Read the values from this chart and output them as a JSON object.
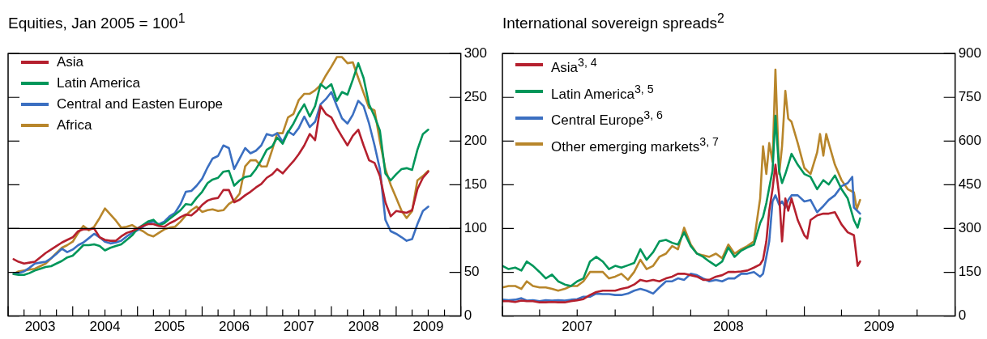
{
  "chart_data": [
    {
      "type": "line",
      "title": "Equities, Jan 2005 = 100$^{1}$",
      "legend": "top left",
      "x": [
        "2003-02",
        "2003-03",
        "2003-04",
        "2003-05",
        "2003-06",
        "2003-07",
        "2003-08",
        "2003-09",
        "2003-10",
        "2003-11",
        "2003-12",
        "2004-01",
        "2004-02",
        "2004-03",
        "2004-04",
        "2004-05",
        "2004-06",
        "2004-07",
        "2004-08",
        "2004-09",
        "2004-10",
        "2004-11",
        "2004-12",
        "2005-01",
        "2005-02",
        "2005-03",
        "2005-04",
        "2005-05",
        "2005-06",
        "2005-07",
        "2005-08",
        "2005-09",
        "2005-10",
        "2005-11",
        "2005-12",
        "2006-01",
        "2006-02",
        "2006-03",
        "2006-04",
        "2006-05",
        "2006-06",
        "2006-07",
        "2006-08",
        "2006-09",
        "2006-10",
        "2006-11",
        "2006-12",
        "2007-01",
        "2007-02",
        "2007-03",
        "2007-04",
        "2007-05",
        "2007-06",
        "2007-07",
        "2007-08",
        "2007-09",
        "2007-10",
        "2007-11",
        "2007-12",
        "2008-01",
        "2008-02",
        "2008-03",
        "2008-04",
        "2008-05",
        "2008-06",
        "2008-07",
        "2008-08",
        "2008-09",
        "2008-10",
        "2008-11",
        "2008-12",
        "2009-01",
        "2009-02",
        "2009-03",
        "2009-04",
        "2009-05",
        "2009-06",
        "2009-07"
      ],
      "series": [
        {
          "name": "Asia",
          "color": "#b5202e",
          "values": [
            65,
            62,
            60,
            61,
            62,
            67,
            72,
            76,
            80,
            84,
            87,
            90,
            97,
            99,
            99,
            100,
            90,
            87,
            86,
            86,
            91,
            95,
            97,
            100,
            103,
            105,
            105,
            103,
            102,
            106,
            109,
            113,
            116,
            115,
            120,
            127,
            132,
            134,
            135,
            144,
            144,
            130,
            133,
            138,
            142,
            147,
            151,
            158,
            162,
            168,
            163,
            170,
            177,
            185,
            195,
            208,
            201,
            240,
            231,
            227,
            215,
            205,
            195,
            206,
            213,
            195,
            178,
            175,
            160,
            130,
            114,
            120,
            119,
            118,
            121,
            145,
            158,
            165
          ]
        },
        {
          "name": "Latin America",
          "color": "#00965a",
          "values": [
            48,
            47,
            47,
            49,
            52,
            54,
            56,
            57,
            60,
            63,
            67,
            69,
            75,
            81,
            81,
            82,
            80,
            75,
            78,
            80,
            82,
            87,
            92,
            100,
            104,
            108,
            110,
            104,
            106,
            111,
            116,
            121,
            128,
            127,
            135,
            142,
            152,
            156,
            158,
            165,
            166,
            149,
            155,
            159,
            160,
            168,
            178,
            190,
            194,
            204,
            197,
            210,
            220,
            232,
            242,
            228,
            240,
            265,
            260,
            265,
            246,
            256,
            253,
            270,
            289,
            272,
            242,
            228,
            212,
            163,
            155,
            162,
            168,
            169,
            167,
            190,
            208,
            213
          ]
        },
        {
          "name": "Central and Easten Europe",
          "color": "#3b6fc1",
          "values": [
            48,
            49,
            51,
            55,
            60,
            61,
            62,
            66,
            71,
            77,
            73,
            76,
            81,
            84,
            89,
            94,
            90,
            85,
            83,
            84,
            86,
            91,
            95,
            98,
            102,
            106,
            108,
            105,
            108,
            114,
            118,
            128,
            142,
            143,
            149,
            157,
            170,
            180,
            183,
            195,
            192,
            168,
            180,
            192,
            186,
            189,
            195,
            208,
            206,
            209,
            199,
            211,
            207,
            215,
            228,
            216,
            222,
            242,
            248,
            256,
            240,
            226,
            220,
            230,
            246,
            240,
            220,
            195,
            168,
            110,
            97,
            94,
            90,
            86,
            88,
            105,
            120,
            125
          ]
        },
        {
          "name": "Africa",
          "color": "#b8862b",
          "values": [
            48,
            51,
            52,
            53,
            54,
            57,
            60,
            66,
            72,
            78,
            81,
            85,
            95,
            103,
            98,
            102,
            112,
            123,
            116,
            109,
            101,
            102,
            104,
            100,
            97,
            93,
            91,
            95,
            99,
            101,
            102,
            108,
            115,
            121,
            125,
            119,
            121,
            122,
            120,
            121,
            128,
            132,
            140,
            171,
            178,
            178,
            171,
            171,
            190,
            209,
            209,
            227,
            231,
            247,
            254,
            254,
            258,
            264,
            275,
            285,
            296,
            296,
            289,
            290,
            272,
            255,
            238,
            235,
            200,
            168,
            150,
            135,
            120,
            112,
            120,
            155,
            160,
            166
          ]
        }
      ],
      "xlim": [
        "2003-01",
        "2010-01"
      ],
      "xticks": [
        {
          "value": "2003-01",
          "label": null
        },
        {
          "value": "2003-04",
          "label": null
        },
        {
          "value": "2003-07",
          "label": "2003"
        },
        {
          "value": "2003-10",
          "label": null
        },
        {
          "value": "2004-01",
          "label": null
        },
        {
          "value": "2004-04",
          "label": null
        },
        {
          "value": "2004-07",
          "label": "2004"
        },
        {
          "value": "2004-10",
          "label": null
        },
        {
          "value": "2005-01",
          "label": null
        },
        {
          "value": "2005-04",
          "label": null
        },
        {
          "value": "2005-07",
          "label": "2005"
        },
        {
          "value": "2005-10",
          "label": null
        },
        {
          "value": "2006-01",
          "label": null
        },
        {
          "value": "2006-04",
          "label": null
        },
        {
          "value": "2006-07",
          "label": "2006"
        },
        {
          "value": "2006-10",
          "label": null
        },
        {
          "value": "2007-01",
          "label": null
        },
        {
          "value": "2007-04",
          "label": null
        },
        {
          "value": "2007-07",
          "label": "2007"
        },
        {
          "value": "2007-10",
          "label": null
        },
        {
          "value": "2008-01",
          "label": null
        },
        {
          "value": "2008-04",
          "label": null
        },
        {
          "value": "2008-07",
          "label": "2008"
        },
        {
          "value": "2008-10",
          "label": null
        },
        {
          "value": "2009-01",
          "label": null
        },
        {
          "value": "2009-04",
          "label": null
        },
        {
          "value": "2009-07",
          "label": "2009"
        },
        {
          "value": "2009-10",
          "label": null
        },
        {
          "value": "2010-01",
          "label": null
        }
      ],
      "ylim": [
        0,
        300
      ],
      "yticks": [
        0,
        50,
        100,
        150,
        200,
        250,
        300
      ],
      "ref_lines": [
        {
          "axis": "y",
          "value": 100,
          "color": "#000000"
        }
      ],
      "marker": "none",
      "line_style": "solid"
    },
    {
      "type": "line",
      "title": "International sovereign spreads$^{2}$",
      "legend": "top left",
      "series": [
        {
          "name": "Asia$^{3, 4}$",
          "color": "#b5202e",
          "x": [
            "2007-01-01",
            "2007-01-16",
            "2007-02-01",
            "2007-02-16",
            "2007-03-01",
            "2007-03-16",
            "2007-04-01",
            "2007-04-16",
            "2007-05-01",
            "2007-05-16",
            "2007-06-01",
            "2007-06-16",
            "2007-07-01",
            "2007-07-16",
            "2007-08-01",
            "2007-08-16",
            "2007-09-01",
            "2007-09-16",
            "2007-10-01",
            "2007-10-16",
            "2007-11-01",
            "2007-11-16",
            "2007-12-01",
            "2007-12-16",
            "2008-01-01",
            "2008-01-16",
            "2008-02-01",
            "2008-02-16",
            "2008-03-01",
            "2008-03-16",
            "2008-04-01",
            "2008-04-16",
            "2008-05-01",
            "2008-05-16",
            "2008-06-01",
            "2008-06-16",
            "2008-07-01",
            "2008-07-16",
            "2008-08-01",
            "2008-08-16",
            "2008-09-01",
            "2008-09-16",
            "2008-09-23",
            "2008-10-01",
            "2008-10-08",
            "2008-10-16",
            "2008-10-23",
            "2008-11-01",
            "2008-11-08",
            "2008-11-16",
            "2008-11-23",
            "2008-12-01",
            "2008-12-16",
            "2009-01-01",
            "2009-01-08",
            "2009-01-16",
            "2009-02-01",
            "2009-02-16",
            "2009-03-01",
            "2009-03-16",
            "2009-04-01",
            "2009-04-16",
            "2009-05-01",
            "2009-05-10",
            "2009-05-16"
          ],
          "values": [
            51,
            51,
            48,
            53,
            51,
            51,
            47,
            47,
            48,
            47,
            47,
            51,
            54,
            58,
            72,
            82,
            87,
            87,
            87,
            93,
            98,
            108,
            124,
            119,
            124,
            119,
            129,
            135,
            145,
            145,
            140,
            135,
            124,
            124,
            135,
            140,
            151,
            151,
            153,
            156,
            166,
            177,
            193,
            256,
            361,
            435,
            519,
            414,
            256,
            403,
            361,
            403,
            329,
            277,
            266,
            329,
            345,
            351,
            351,
            356,
            314,
            287,
            277,
            172,
            187
          ]
        },
        {
          "name": "Latin America$^{3, 5}$",
          "color": "#00965a",
          "x": [
            "2007-01-01",
            "2007-01-16",
            "2007-02-01",
            "2007-02-16",
            "2007-03-01",
            "2007-03-16",
            "2007-04-01",
            "2007-04-16",
            "2007-05-01",
            "2007-05-16",
            "2007-06-01",
            "2007-06-16",
            "2007-07-01",
            "2007-07-16",
            "2007-08-01",
            "2007-08-16",
            "2007-09-01",
            "2007-09-16",
            "2007-10-01",
            "2007-10-16",
            "2007-11-01",
            "2007-11-16",
            "2007-12-01",
            "2007-12-16",
            "2008-01-01",
            "2008-01-16",
            "2008-02-01",
            "2008-02-16",
            "2008-03-01",
            "2008-03-16",
            "2008-04-01",
            "2008-04-16",
            "2008-05-01",
            "2008-05-16",
            "2008-06-01",
            "2008-06-16",
            "2008-07-01",
            "2008-07-16",
            "2008-08-01",
            "2008-08-16",
            "2008-09-01",
            "2008-09-16",
            "2008-09-23",
            "2008-10-01",
            "2008-10-08",
            "2008-10-16",
            "2008-10-23",
            "2008-11-01",
            "2008-11-08",
            "2008-11-16",
            "2008-11-23",
            "2008-12-01",
            "2008-12-16",
            "2009-01-01",
            "2009-01-16",
            "2009-02-01",
            "2009-02-16",
            "2009-03-01",
            "2009-03-16",
            "2009-04-01",
            "2009-04-16",
            "2009-05-01",
            "2009-05-10",
            "2009-05-16"
          ],
          "values": [
            172,
            161,
            166,
            156,
            187,
            172,
            151,
            129,
            142,
            119,
            108,
            103,
            119,
            129,
            187,
            203,
            187,
            161,
            172,
            166,
            174,
            182,
            229,
            193,
            219,
            256,
            261,
            251,
            245,
            287,
            240,
            214,
            203,
            187,
            172,
            187,
            235,
            203,
            224,
            235,
            245,
            319,
            340,
            387,
            440,
            498,
            687,
            498,
            456,
            487,
            519,
            556,
            519,
            487,
            477,
            435,
            466,
            451,
            482,
            435,
            403,
            329,
            303,
            335
          ]
        },
        {
          "name": "Central Europe$^{3, 6}$",
          "color": "#3b6fc1",
          "x": [
            "2007-01-01",
            "2007-01-16",
            "2007-02-01",
            "2007-02-16",
            "2007-03-01",
            "2007-03-16",
            "2007-04-01",
            "2007-04-16",
            "2007-05-01",
            "2007-05-16",
            "2007-06-01",
            "2007-06-16",
            "2007-07-01",
            "2007-07-16",
            "2007-08-01",
            "2007-08-16",
            "2007-09-01",
            "2007-09-16",
            "2007-10-01",
            "2007-10-16",
            "2007-11-01",
            "2007-11-16",
            "2007-12-01",
            "2007-12-16",
            "2008-01-01",
            "2008-01-16",
            "2008-02-01",
            "2008-02-16",
            "2008-03-01",
            "2008-03-16",
            "2008-04-01",
            "2008-04-16",
            "2008-05-01",
            "2008-05-16",
            "2008-06-01",
            "2008-06-16",
            "2008-07-01",
            "2008-07-16",
            "2008-08-01",
            "2008-08-16",
            "2008-09-01",
            "2008-09-16",
            "2008-09-23",
            "2008-10-01",
            "2008-10-08",
            "2008-10-16",
            "2008-10-23",
            "2008-11-01",
            "2008-11-08",
            "2008-11-16",
            "2008-11-23",
            "2008-12-01",
            "2008-12-16",
            "2009-01-01",
            "2009-01-16",
            "2009-02-01",
            "2009-02-16",
            "2009-03-01",
            "2009-03-16",
            "2009-04-01",
            "2009-04-16",
            "2009-04-27",
            "2009-05-01",
            "2009-05-16"
          ],
          "values": [
            56,
            54,
            56,
            61,
            53,
            54,
            51,
            54,
            53,
            54,
            53,
            56,
            58,
            66,
            66,
            77,
            75,
            75,
            72,
            72,
            77,
            87,
            93,
            87,
            77,
            98,
            119,
            119,
            129,
            124,
            145,
            140,
            129,
            119,
            124,
            119,
            129,
            129,
            145,
            145,
            151,
            135,
            145,
            203,
            256,
            393,
            414,
            382,
            393,
            372,
            398,
            414,
            414,
            393,
            398,
            356,
            377,
            398,
            414,
            445,
            456,
            477,
            372,
            351
          ]
        },
        {
          "name": "Other emerging markets$^{3, 7}$",
          "color": "#b8862b",
          "x": [
            "2007-01-01",
            "2007-01-16",
            "2007-02-01",
            "2007-02-16",
            "2007-03-01",
            "2007-03-16",
            "2007-04-01",
            "2007-04-16",
            "2007-05-01",
            "2007-05-16",
            "2007-06-01",
            "2007-06-16",
            "2007-07-01",
            "2007-07-16",
            "2007-08-01",
            "2007-08-16",
            "2007-09-01",
            "2007-09-16",
            "2007-10-01",
            "2007-10-16",
            "2007-11-01",
            "2007-11-16",
            "2007-12-01",
            "2007-12-16",
            "2008-01-01",
            "2008-01-16",
            "2008-02-01",
            "2008-02-16",
            "2008-03-01",
            "2008-03-16",
            "2008-04-01",
            "2008-04-16",
            "2008-05-01",
            "2008-05-16",
            "2008-06-01",
            "2008-06-16",
            "2008-07-01",
            "2008-07-16",
            "2008-08-01",
            "2008-08-16",
            "2008-09-01",
            "2008-09-16",
            "2008-09-23",
            "2008-10-01",
            "2008-10-08",
            "2008-10-16",
            "2008-10-23",
            "2008-11-01",
            "2008-11-08",
            "2008-11-16",
            "2008-11-23",
            "2008-12-01",
            "2008-12-16",
            "2009-01-01",
            "2009-01-16",
            "2009-02-01",
            "2009-02-08",
            "2009-02-16",
            "2009-02-23",
            "2009-03-01",
            "2009-03-16",
            "2009-04-01",
            "2009-04-16",
            "2009-05-01",
            "2009-05-08",
            "2009-05-16"
          ],
          "values": [
            98,
            103,
            103,
            93,
            119,
            103,
            98,
            98,
            93,
            87,
            93,
            103,
            103,
            119,
            151,
            151,
            151,
            129,
            135,
            145,
            124,
            151,
            193,
            161,
            172,
            203,
            214,
            240,
            229,
            303,
            245,
            214,
            208,
            203,
            214,
            198,
            245,
            214,
            229,
            240,
            256,
            403,
            582,
            487,
            593,
            529,
            845,
            487,
            582,
            772,
            677,
            666,
            593,
            508,
            487,
            561,
            624,
            550,
            624,
            593,
            519,
            466,
            435,
            424,
            366,
            398
          ]
        }
      ],
      "xlim": [
        "2007-01",
        "2010-01"
      ],
      "xticks": [
        {
          "value": "2007-01",
          "label": null
        },
        {
          "value": "2007-04",
          "label": null
        },
        {
          "value": "2007-07",
          "label": "2007"
        },
        {
          "value": "2007-10",
          "label": null
        },
        {
          "value": "2008-01",
          "label": null
        },
        {
          "value": "2008-04",
          "label": null
        },
        {
          "value": "2008-07",
          "label": "2008"
        },
        {
          "value": "2008-10",
          "label": null
        },
        {
          "value": "2009-01",
          "label": null
        },
        {
          "value": "2009-04",
          "label": null
        },
        {
          "value": "2009-07",
          "label": "2009"
        },
        {
          "value": "2009-10",
          "label": null
        },
        {
          "value": "2010-01",
          "label": null
        }
      ],
      "ylim": [
        0,
        900
      ],
      "yticks": [
        0,
        150,
        300,
        450,
        600,
        750,
        900
      ],
      "marker": "none",
      "line_style": "solid"
    }
  ]
}
